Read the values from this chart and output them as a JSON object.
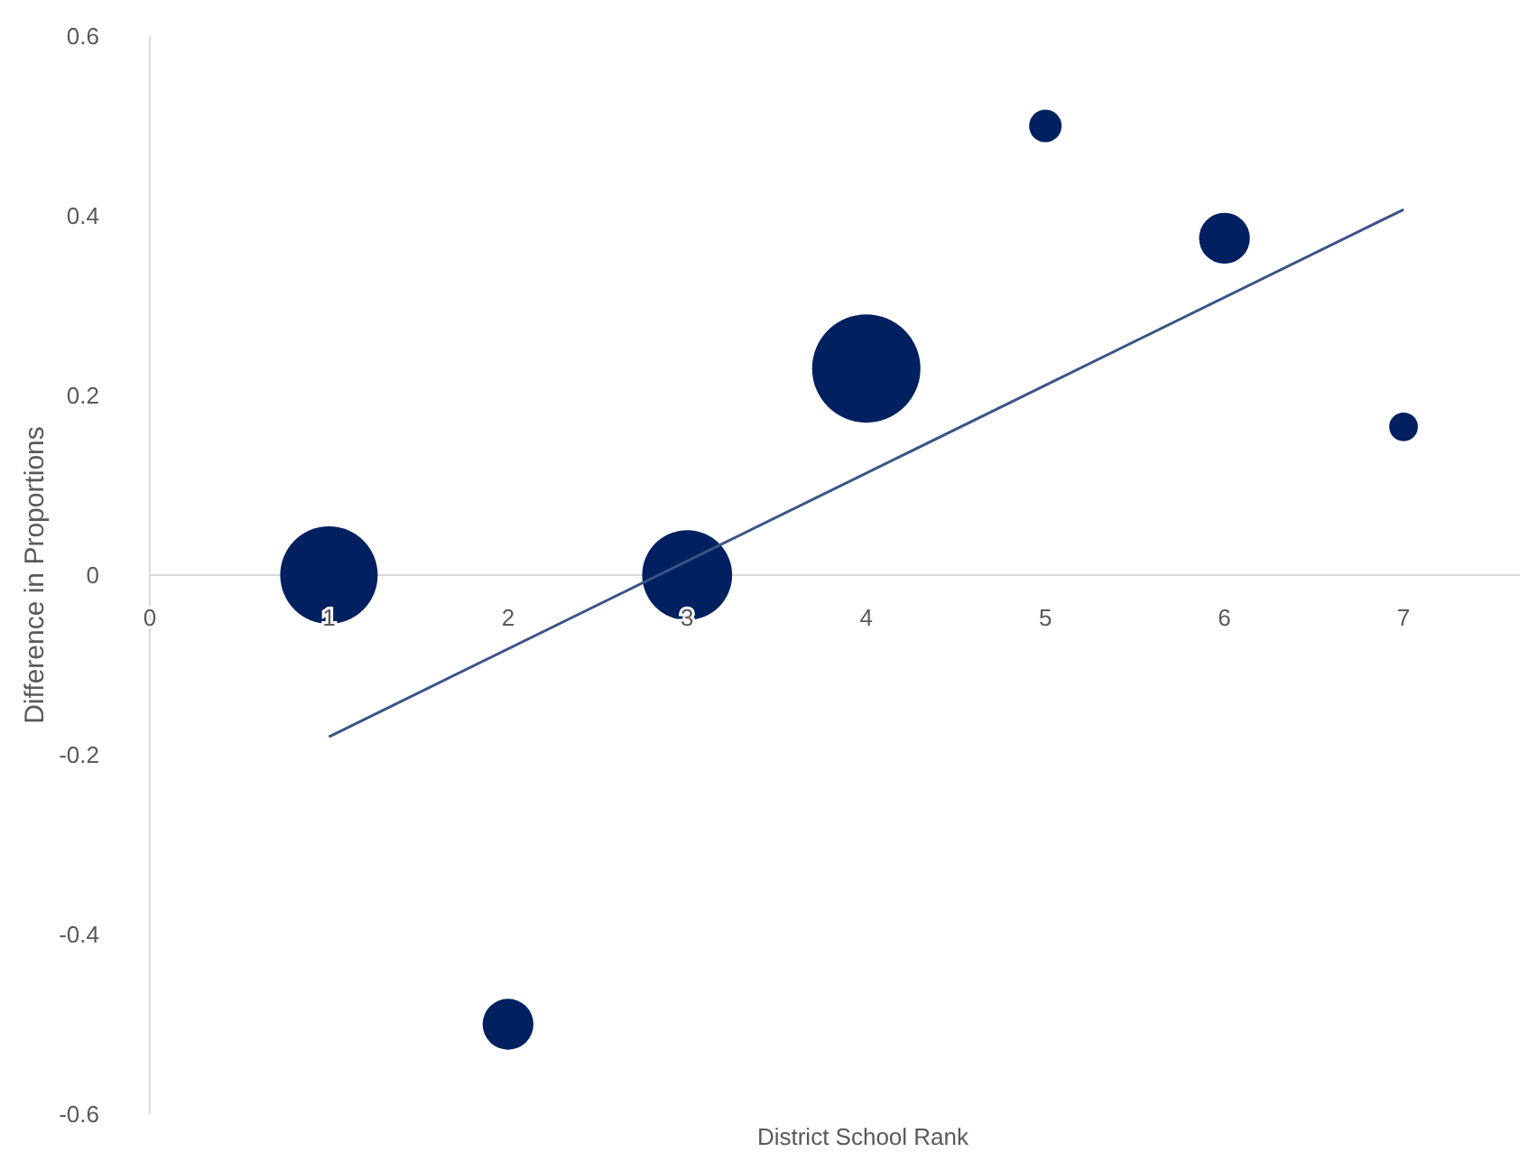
{
  "chart_data": {
    "type": "bubble",
    "xlabel": "District School Rank",
    "ylabel": "Difference in Proportions",
    "xlim": [
      0,
      7.65
    ],
    "xticks": [
      0,
      1,
      2,
      3,
      4,
      5,
      6,
      7
    ],
    "ylim": [
      -0.6,
      0.6
    ],
    "yticks": [
      -0.6,
      -0.4,
      -0.2,
      0,
      0.2,
      0.4,
      0.6
    ],
    "grid": false,
    "series": [
      {
        "color": "#002060",
        "x": [
          1,
          2,
          3,
          4,
          5,
          6,
          7
        ],
        "values": [
          0,
          -0.5,
          0,
          0.23,
          0.5,
          0.375,
          0.165
        ],
        "sizes": [
          0.81,
          0.22,
          0.69,
          1,
          0.09,
          0.22,
          0.07
        ]
      },
      {
        "type": "line",
        "color": "#3b5487",
        "x": [
          1,
          7
        ],
        "values": [
          -0.18,
          0.407
        ]
      }
    ]
  }
}
